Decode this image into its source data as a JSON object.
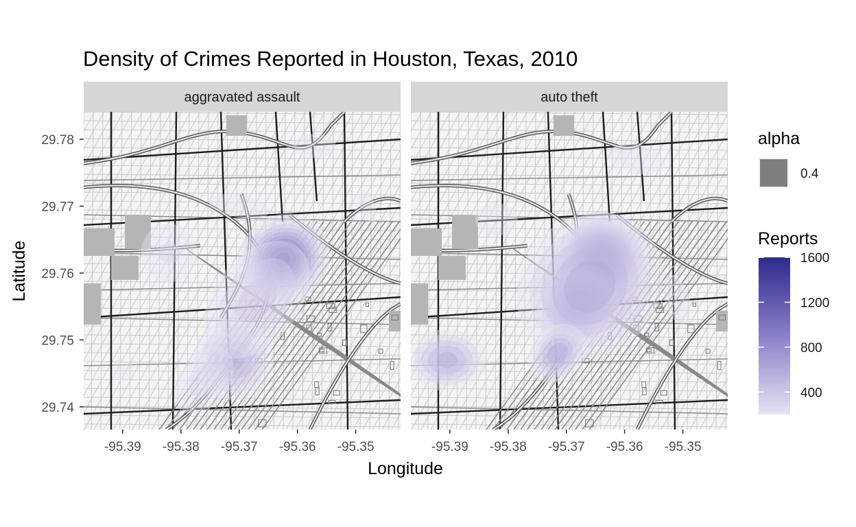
{
  "chart_data": {
    "type": "heatmap",
    "title": "Density of Crimes Reported in Houston, Texas, 2010",
    "xlabel": "Longitude",
    "ylabel": "Latitude",
    "xlim": [
      -95.3967,
      -95.3423
    ],
    "ylim": [
      29.7366,
      29.7841
    ],
    "x_ticks": [
      -95.39,
      -95.38,
      -95.37,
      -95.36,
      -95.35
    ],
    "y_ticks": [
      29.74,
      29.75,
      29.76,
      29.77,
      29.78
    ],
    "x_tick_labels": [
      "-95.39",
      "-95.38",
      "-95.37",
      "-95.36",
      "-95.35"
    ],
    "y_tick_labels": [
      "29.74",
      "29.75",
      "29.76",
      "29.77",
      "29.78"
    ],
    "legend_position": "right",
    "color_low": "#e6e3f3",
    "color_high": "#2e2a8c",
    "basemap": "street map of downtown Houston (greyscale)",
    "facets": [
      {
        "label": "aggravated assault",
        "hotspots": [
          {
            "lon": -95.3625,
            "lat": 29.762,
            "peak": 1150,
            "sx": 0.0045,
            "sy": 0.0035,
            "rot": 40
          },
          {
            "lon": -95.371,
            "lat": 29.747,
            "peak": 650,
            "sx": 0.0045,
            "sy": 0.004,
            "rot": 45
          },
          {
            "lon": -95.367,
            "lat": 29.756,
            "peak": 450,
            "sx": 0.009,
            "sy": 0.005,
            "rot": 52
          },
          {
            "lon": -95.376,
            "lat": 29.744,
            "peak": 350,
            "sx": 0.006,
            "sy": 0.0035,
            "rot": 55
          },
          {
            "lon": -95.382,
            "lat": 29.763,
            "peak": 320,
            "sx": 0.005,
            "sy": 0.0045,
            "rot": 10
          },
          {
            "lon": -95.357,
            "lat": 29.779,
            "peak": 260,
            "sx": 0.005,
            "sy": 0.0025,
            "rot": 0
          },
          {
            "lon": -95.37,
            "lat": 29.77,
            "peak": 250,
            "sx": 0.008,
            "sy": 0.0025,
            "rot": -10
          },
          {
            "lon": -95.39,
            "lat": 29.7455,
            "peak": 300,
            "sx": 0.002,
            "sy": 0.002,
            "rot": 0
          },
          {
            "lon": -95.348,
            "lat": 29.77,
            "peak": 220,
            "sx": 0.003,
            "sy": 0.006,
            "rot": 20
          }
        ]
      },
      {
        "label": "auto theft",
        "hotspots": [
          {
            "lon": -95.364,
            "lat": 29.762,
            "peak": 1600,
            "sx": 0.004,
            "sy": 0.0035,
            "rot": 45
          },
          {
            "lon": -95.368,
            "lat": 29.755,
            "peak": 1200,
            "sx": 0.004,
            "sy": 0.003,
            "rot": 45
          },
          {
            "lon": -95.366,
            "lat": 29.758,
            "peak": 700,
            "sx": 0.0085,
            "sy": 0.0065,
            "rot": 48
          },
          {
            "lon": -95.3715,
            "lat": 29.748,
            "peak": 700,
            "sx": 0.0035,
            "sy": 0.0025,
            "rot": 45
          },
          {
            "lon": -95.3905,
            "lat": 29.747,
            "peak": 650,
            "sx": 0.0045,
            "sy": 0.003,
            "rot": 0
          },
          {
            "lon": -95.358,
            "lat": 29.777,
            "peak": 260,
            "sx": 0.007,
            "sy": 0.003,
            "rot": -10
          },
          {
            "lon": -95.382,
            "lat": 29.768,
            "peak": 240,
            "sx": 0.006,
            "sy": 0.004,
            "rot": 0
          },
          {
            "lon": -95.351,
            "lat": 29.756,
            "peak": 230,
            "sx": 0.004,
            "sy": 0.007,
            "rot": 15
          }
        ]
      }
    ],
    "legends": [
      {
        "title": "alpha",
        "entries": [
          {
            "label": "0.4",
            "color": "#7f7f7f"
          }
        ]
      },
      {
        "title": "Reports",
        "min": 200,
        "max": 1600,
        "breaks": [
          400,
          800,
          1200,
          1600
        ],
        "break_labels": [
          "400",
          "800",
          "1200",
          "1600"
        ]
      }
    ]
  }
}
